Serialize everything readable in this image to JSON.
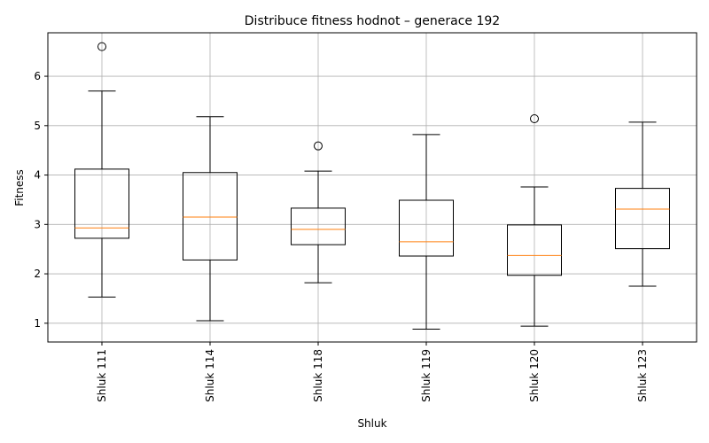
{
  "chart_data": {
    "type": "boxplot",
    "title": "Distribuce fitness hodnot – generace 192",
    "xlabel": "Shluk",
    "ylabel": "Fitness",
    "ylim": [
      0.62,
      6.88
    ],
    "yticks": [
      1,
      2,
      3,
      4,
      5,
      6
    ],
    "grid": true,
    "categories": [
      "Shluk 111",
      "Shluk 114",
      "Shluk 118",
      "Shluk 119",
      "Shluk 120",
      "Shluk 123"
    ],
    "boxes": [
      {
        "whisker_low": 1.53,
        "q1": 2.72,
        "median": 2.93,
        "q3": 4.12,
        "whisker_high": 5.7,
        "outliers": [
          6.6
        ]
      },
      {
        "whisker_low": 1.05,
        "q1": 2.28,
        "median": 3.15,
        "q3": 4.05,
        "whisker_high": 5.18,
        "outliers": []
      },
      {
        "whisker_low": 1.82,
        "q1": 2.59,
        "median": 2.9,
        "q3": 3.33,
        "whisker_high": 4.08,
        "outliers": [
          4.59
        ]
      },
      {
        "whisker_low": 0.88,
        "q1": 2.36,
        "median": 2.65,
        "q3": 3.49,
        "whisker_high": 4.82,
        "outliers": []
      },
      {
        "whisker_low": 0.94,
        "q1": 1.97,
        "median": 2.37,
        "q3": 2.99,
        "whisker_high": 3.76,
        "outliers": [
          5.14
        ]
      },
      {
        "whisker_low": 1.75,
        "q1": 2.51,
        "median": 3.31,
        "q3": 3.73,
        "whisker_high": 5.07,
        "outliers": []
      }
    ],
    "colors": {
      "box": "#000000",
      "median": "#ff7f0e",
      "grid": "#b0b0b0"
    }
  }
}
